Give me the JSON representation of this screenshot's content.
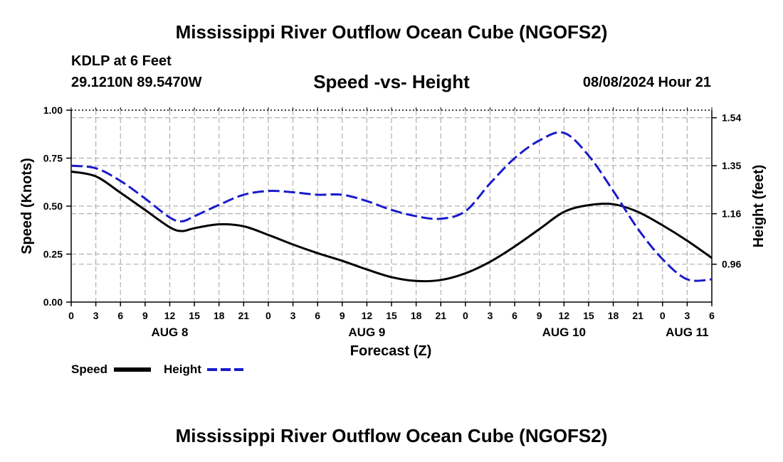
{
  "header": {
    "title": "Mississippi River Outflow Ocean Cube (NGOFS2)",
    "station": "KDLP at 6 Feet",
    "coordinates": "29.1210N  89.5470W",
    "subtitle": "Speed -vs- Height",
    "datestamp": "08/08/2024 Hour 21"
  },
  "footer": {
    "title": "Mississippi River Outflow Ocean Cube (NGOFS2)"
  },
  "colors": {
    "speed": "#000000",
    "height": "#1a1acc",
    "grid": "#b0b0b0"
  },
  "chart_data": {
    "type": "line",
    "title": "Speed -vs- Height",
    "xlabel": "Forecast (Z)",
    "ylabel": "Speed (Knots)",
    "y2label": "Height (feet)",
    "xlim": [
      0,
      78
    ],
    "ylim": [
      0,
      1.0
    ],
    "y2lim": [
      0.81,
      1.57
    ],
    "x_tick_values": [
      0,
      3,
      6,
      9,
      12,
      15,
      18,
      21,
      24,
      27,
      30,
      33,
      36,
      39,
      42,
      45,
      48,
      51,
      54,
      57,
      60,
      63,
      66,
      69,
      72,
      75,
      78
    ],
    "x_tick_labels": [
      "0",
      "3",
      "6",
      "9",
      "12",
      "15",
      "18",
      "21",
      "0",
      "3",
      "6",
      "9",
      "12",
      "15",
      "18",
      "21",
      "0",
      "3",
      "6",
      "9",
      "12",
      "15",
      "18",
      "21",
      "0",
      "3",
      "6"
    ],
    "day_labels": [
      {
        "label": "AUG 8",
        "x": 12
      },
      {
        "label": "AUG 9",
        "x": 36
      },
      {
        "label": "AUG 10",
        "x": 60
      },
      {
        "label": "AUG 11",
        "x": 75
      }
    ],
    "y_ticks": [
      {
        "value": 0.0,
        "label": "0.00"
      },
      {
        "value": 0.25,
        "label": "0.25"
      },
      {
        "value": 0.5,
        "label": "0.50"
      },
      {
        "value": 0.75,
        "label": "0.75"
      },
      {
        "value": 1.0,
        "label": "1.00"
      }
    ],
    "y2_ticks": [
      {
        "value": 0.96,
        "label": "0.96"
      },
      {
        "value": 1.16,
        "label": "1.16"
      },
      {
        "value": 1.35,
        "label": "1.35"
      },
      {
        "value": 1.54,
        "label": "1.54"
      }
    ],
    "legend": [
      {
        "name": "Speed",
        "style": "solid"
      },
      {
        "name": "Height",
        "style": "dashed"
      }
    ],
    "series": [
      {
        "name": "Speed",
        "axis": "left",
        "style": "solid",
        "x": [
          0,
          3,
          6,
          9,
          12,
          13.5,
          15,
          18,
          21,
          24,
          27,
          30,
          33,
          36,
          39,
          42,
          45,
          48,
          51,
          54,
          57,
          60,
          63,
          66,
          69,
          72,
          75,
          78
        ],
        "values": [
          0.68,
          0.655,
          0.57,
          0.48,
          0.39,
          0.37,
          0.385,
          0.405,
          0.395,
          0.35,
          0.3,
          0.255,
          0.215,
          0.17,
          0.13,
          0.11,
          0.115,
          0.15,
          0.21,
          0.29,
          0.38,
          0.47,
          0.505,
          0.51,
          0.47,
          0.4,
          0.32,
          0.23
        ]
      },
      {
        "name": "Height",
        "axis": "right",
        "style": "dashed",
        "x": [
          0,
          3,
          6,
          9,
          12,
          13.5,
          15,
          18,
          21,
          24,
          27,
          30,
          33,
          36,
          39,
          42,
          45,
          48,
          51,
          54,
          57,
          60,
          63,
          66,
          69,
          72,
          75,
          78
        ],
        "values": [
          1.35,
          1.34,
          1.29,
          1.22,
          1.145,
          1.13,
          1.15,
          1.195,
          1.235,
          1.25,
          1.245,
          1.235,
          1.235,
          1.21,
          1.175,
          1.15,
          1.14,
          1.17,
          1.28,
          1.38,
          1.45,
          1.48,
          1.39,
          1.25,
          1.1,
          0.98,
          0.9,
          0.9
        ]
      }
    ]
  }
}
